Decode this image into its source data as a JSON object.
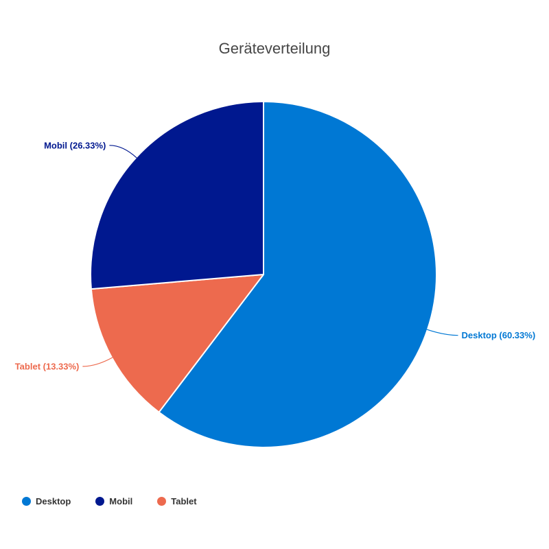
{
  "title": "Geräteverteilung",
  "colors": {
    "background": "#ffffff",
    "title_text": "#464646",
    "legend_text": "#333333",
    "slice_border": "#ffffff"
  },
  "chart_data": {
    "type": "pie",
    "title": "Geräteverteilung",
    "categories": [
      "Desktop",
      "Mobil",
      "Tablet"
    ],
    "values": [
      60.33,
      26.33,
      13.33
    ],
    "unit": "%",
    "colors": [
      "#0078d4",
      "#00188f",
      "#ed6a4e"
    ],
    "labels": [
      "Desktop (60.33%)",
      "Mobil (26.33%)",
      "Tablet (13.33%)"
    ],
    "legend": {
      "position": "bottom-left",
      "entries": [
        "Desktop",
        "Mobil",
        "Tablet"
      ]
    },
    "layout": {
      "center": [
        384,
        400
      ],
      "radius": 252,
      "start_angle_deg": 0,
      "direction": "clockwise",
      "draw_order": [
        0,
        2,
        1
      ],
      "label_line_extension": 26,
      "label_line_horizontal": 20
    }
  }
}
